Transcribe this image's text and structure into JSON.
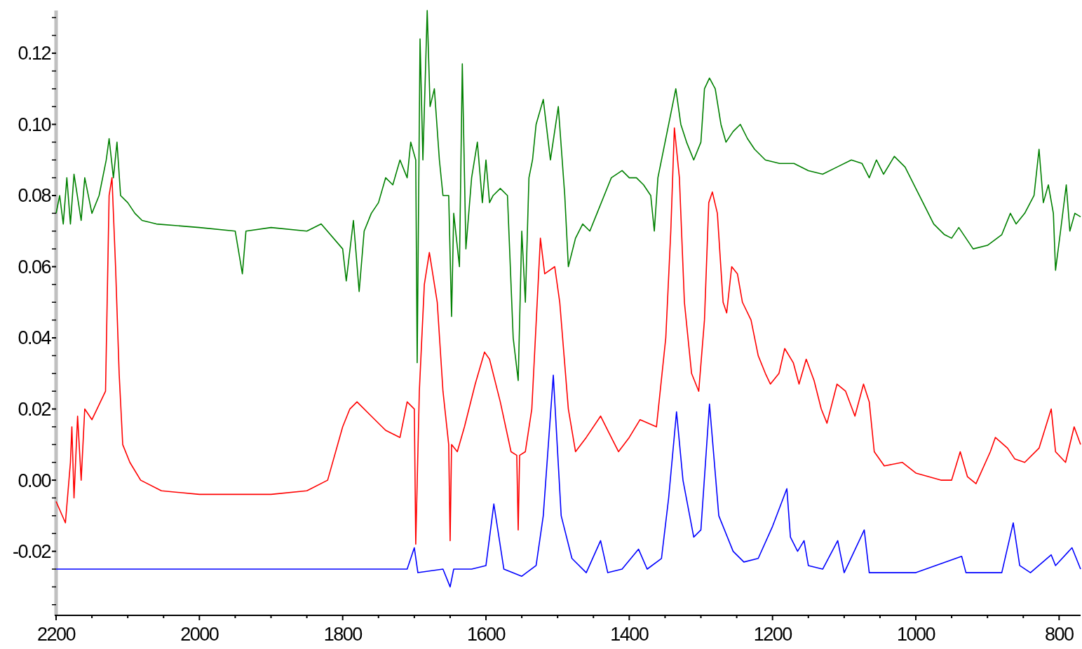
{
  "chart_data": {
    "type": "line",
    "xlim": [
      2200,
      770
    ],
    "ylim": [
      -0.038,
      0.132
    ],
    "xticks": [
      2200,
      {
        "value": 2150,
        "label": null
      },
      {
        "value": 2100,
        "label": null
      },
      {
        "value": 2050,
        "label": null
      },
      2000,
      {
        "value": 1950,
        "label": null
      },
      {
        "value": 1900,
        "label": null
      },
      {
        "value": 1850,
        "label": null
      },
      1800,
      {
        "value": 1750,
        "label": null
      },
      {
        "value": 1700,
        "label": null
      },
      {
        "value": 1650,
        "label": null
      },
      1600,
      {
        "value": 1550,
        "label": null
      },
      {
        "value": 1500,
        "label": null
      },
      {
        "value": 1450,
        "label": null
      },
      1400,
      {
        "value": 1350,
        "label": null
      },
      {
        "value": 1300,
        "label": null
      },
      {
        "value": 1250,
        "label": null
      },
      1200,
      {
        "value": 1150,
        "label": null
      },
      {
        "value": 1100,
        "label": null
      },
      {
        "value": 1050,
        "label": null
      },
      1000,
      {
        "value": 950,
        "label": null
      },
      {
        "value": 900,
        "label": null
      },
      {
        "value": 850,
        "label": null
      },
      800
    ],
    "yticks": [
      {
        "value": -0.035,
        "label": null
      },
      {
        "value": -0.03,
        "label": null
      },
      {
        "value": -0.025,
        "label": null
      },
      {
        "value": -0.02,
        "label": "-0.02"
      },
      {
        "value": -0.015,
        "label": null
      },
      {
        "value": -0.01,
        "label": null
      },
      {
        "value": -0.005,
        "label": null
      },
      {
        "value": 0,
        "label": "0.00"
      },
      {
        "value": 0.005,
        "label": null
      },
      {
        "value": 0.01,
        "label": null
      },
      {
        "value": 0.015,
        "label": null
      },
      {
        "value": 0.02,
        "label": "0.02"
      },
      {
        "value": 0.025,
        "label": null
      },
      {
        "value": 0.03,
        "label": null
      },
      {
        "value": 0.035,
        "label": null
      },
      {
        "value": 0.04,
        "label": "0.04"
      },
      {
        "value": 0.045,
        "label": null
      },
      {
        "value": 0.05,
        "label": null
      },
      {
        "value": 0.055,
        "label": null
      },
      {
        "value": 0.06,
        "label": "0.06"
      },
      {
        "value": 0.065,
        "label": null
      },
      {
        "value": 0.07,
        "label": null
      },
      {
        "value": 0.075,
        "label": null
      },
      {
        "value": 0.08,
        "label": "0.08"
      },
      {
        "value": 0.085,
        "label": null
      },
      {
        "value": 0.09,
        "label": null
      },
      {
        "value": 0.095,
        "label": null
      },
      {
        "value": 0.1,
        "label": "0.10"
      },
      {
        "value": 0.105,
        "label": null
      },
      {
        "value": 0.11,
        "label": null
      },
      {
        "value": 0.115,
        "label": null
      },
      {
        "value": 0.12,
        "label": "0.12"
      },
      {
        "value": 0.125,
        "label": null
      },
      {
        "value": 0.13,
        "label": null
      }
    ],
    "grid": false,
    "marker": "none",
    "line_style": "solid",
    "series": [
      {
        "color": "#008000",
        "x": [
          2200,
          2195,
          2190,
          2185,
          2180,
          2175,
          2165,
          2160,
          2150,
          2140,
          2130,
          2126,
          2120,
          2115,
          2110,
          2100,
          2090,
          2080,
          2060,
          2000,
          1950,
          1940,
          1935,
          1900,
          1850,
          1830,
          1800,
          1795,
          1785,
          1777,
          1770,
          1760,
          1750,
          1740,
          1730,
          1720,
          1710,
          1705,
          1698,
          1696,
          1692,
          1688,
          1682,
          1678,
          1672,
          1665,
          1660,
          1652,
          1648,
          1645,
          1637,
          1633,
          1628,
          1620,
          1612,
          1605,
          1600,
          1595,
          1590,
          1580,
          1570,
          1562,
          1555,
          1550,
          1545,
          1540,
          1535,
          1530,
          1520,
          1510,
          1499,
          1490,
          1485,
          1475,
          1465,
          1455,
          1445,
          1435,
          1425,
          1410,
          1400,
          1390,
          1380,
          1370,
          1365,
          1360,
          1350,
          1340,
          1335,
          1328,
          1320,
          1310,
          1300,
          1295,
          1288,
          1280,
          1272,
          1265,
          1255,
          1245,
          1235,
          1225,
          1210,
          1190,
          1170,
          1150,
          1130,
          1110,
          1090,
          1075,
          1065,
          1055,
          1045,
          1030,
          1015,
          1000,
          990,
          975,
          960,
          950,
          940,
          930,
          920,
          900,
          880,
          868,
          860,
          848,
          835,
          828,
          822,
          815,
          808,
          805,
          798,
          790,
          785,
          778,
          770
        ],
        "values": [
          0.075,
          0.08,
          0.072,
          0.085,
          0.072,
          0.086,
          0.073,
          0.085,
          0.075,
          0.08,
          0.09,
          0.096,
          0.085,
          0.095,
          0.08,
          0.078,
          0.075,
          0.073,
          0.072,
          0.071,
          0.07,
          0.058,
          0.07,
          0.071,
          0.07,
          0.072,
          0.065,
          0.056,
          0.073,
          0.053,
          0.07,
          0.075,
          0.078,
          0.085,
          0.083,
          0.09,
          0.085,
          0.095,
          0.09,
          0.033,
          0.124,
          0.09,
          0.132,
          0.105,
          0.11,
          0.09,
          0.08,
          0.08,
          0.046,
          0.075,
          0.06,
          0.117,
          0.065,
          0.085,
          0.095,
          0.078,
          0.09,
          0.078,
          0.08,
          0.082,
          0.08,
          0.04,
          0.028,
          0.07,
          0.05,
          0.085,
          0.09,
          0.1,
          0.107,
          0.09,
          0.105,
          0.08,
          0.06,
          0.068,
          0.072,
          0.07,
          0.075,
          0.08,
          0.085,
          0.087,
          0.085,
          0.085,
          0.083,
          0.08,
          0.07,
          0.085,
          0.095,
          0.105,
          0.11,
          0.1,
          0.095,
          0.09,
          0.095,
          0.11,
          0.113,
          0.11,
          0.1,
          0.095,
          0.098,
          0.1,
          0.096,
          0.093,
          0.09,
          0.089,
          0.089,
          0.087,
          0.086,
          0.088,
          0.09,
          0.089,
          0.085,
          0.09,
          0.086,
          0.091,
          0.088,
          0.082,
          0.078,
          0.072,
          0.069,
          0.068,
          0.071,
          0.068,
          0.065,
          0.066,
          0.069,
          0.075,
          0.072,
          0.075,
          0.08,
          0.093,
          0.078,
          0.083,
          0.075,
          0.059,
          0.07,
          0.083,
          0.07,
          0.075,
          0.074
        ]
      },
      {
        "color": "#ff0000",
        "x": [
          2200,
          2187,
          2180,
          2178,
          2175,
          2170,
          2165,
          2160,
          2150,
          2131,
          2126,
          2122,
          2117,
          2112,
          2107,
          2097,
          2082,
          2053,
          2000,
          1900,
          1850,
          1821,
          1800,
          1790,
          1780,
          1760,
          1740,
          1720,
          1710,
          1700,
          1698,
          1693,
          1686,
          1679,
          1668,
          1660,
          1652,
          1650,
          1648,
          1640,
          1630,
          1615,
          1602,
          1595,
          1580,
          1565,
          1557,
          1555,
          1553,
          1545,
          1536,
          1524,
          1518,
          1504,
          1497,
          1485,
          1475,
          1460,
          1440,
          1430,
          1415,
          1400,
          1385,
          1362,
          1349,
          1342,
          1337,
          1330,
          1323,
          1313,
          1303,
          1295,
          1289,
          1284,
          1277,
          1269,
          1264,
          1257,
          1249,
          1242,
          1230,
          1220,
          1210,
          1203,
          1191,
          1183,
          1171,
          1163,
          1153,
          1142,
          1132,
          1124,
          1110,
          1098,
          1085,
          1073,
          1065,
          1058,
          1044,
          1019,
          1000,
          965,
          950,
          938,
          928,
          916,
          896,
          889,
          872,
          862,
          848,
          828,
          811,
          805,
          791,
          779,
          770
        ],
        "values": [
          -0.006,
          -0.012,
          0.005,
          0.015,
          -0.005,
          0.018,
          0,
          0.02,
          0.017,
          0.025,
          0.08,
          0.085,
          0.06,
          0.03,
          0.01,
          0.005,
          0,
          -0.003,
          -0.004,
          -0.004,
          -0.003,
          0,
          0.015,
          0.02,
          0.022,
          0.018,
          0.014,
          0.012,
          0.022,
          0.02,
          -0.018,
          0.025,
          0.055,
          0.064,
          0.05,
          0.025,
          0.01,
          -0.017,
          0.01,
          0.008,
          0.015,
          0.027,
          0.036,
          0.034,
          0.022,
          0.008,
          0.007,
          -0.014,
          0.007,
          0.008,
          0.02,
          0.068,
          0.058,
          0.06,
          0.05,
          0.02,
          0.008,
          0.012,
          0.018,
          0.014,
          0.008,
          0.012,
          0.017,
          0.015,
          0.04,
          0.07,
          0.099,
          0.085,
          0.05,
          0.03,
          0.025,
          0.045,
          0.078,
          0.081,
          0.075,
          0.05,
          0.047,
          0.06,
          0.058,
          0.05,
          0.045,
          0.035,
          0.03,
          0.027,
          0.03,
          0.037,
          0.033,
          0.027,
          0.034,
          0.028,
          0.02,
          0.016,
          0.027,
          0.025,
          0.018,
          0.027,
          0.022,
          0.008,
          0.004,
          0.005,
          0.002,
          0,
          0,
          0.008,
          0.001,
          -0.001,
          0.008,
          0.012,
          0.009,
          0.006,
          0.005,
          0.009,
          0.02,
          0.008,
          0.005,
          0.015,
          0.01
        ]
      },
      {
        "color": "#0000ff",
        "x": [
          2200,
          2100,
          2000,
          1900,
          1800,
          1710,
          1700,
          1695,
          1660,
          1650,
          1645,
          1620,
          1600,
          1589,
          1575,
          1550,
          1530,
          1520,
          1506,
          1495,
          1480,
          1460,
          1440,
          1430,
          1410,
          1387,
          1375,
          1355,
          1345,
          1334,
          1325,
          1310,
          1300,
          1288,
          1275,
          1255,
          1240,
          1220,
          1200,
          1180,
          1175,
          1165,
          1156,
          1150,
          1130,
          1109,
          1100,
          1072,
          1065,
          1000,
          936,
          930,
          880,
          864,
          855,
          840,
          811,
          805,
          782,
          770
        ],
        "values": [
          -0.025,
          -0.025,
          -0.025,
          -0.025,
          -0.025,
          -0.025,
          -0.019,
          -0.026,
          -0.025,
          -0.03,
          -0.025,
          -0.025,
          -0.024,
          -0.0067,
          -0.025,
          -0.027,
          -0.024,
          -0.01,
          0.0295,
          -0.01,
          -0.022,
          -0.026,
          -0.017,
          -0.026,
          -0.025,
          -0.0194,
          -0.025,
          -0.022,
          -0.005,
          0.0192,
          0,
          -0.016,
          -0.014,
          0.0214,
          -0.01,
          -0.02,
          -0.023,
          -0.022,
          -0.013,
          -0.0024,
          -0.016,
          -0.02,
          -0.017,
          -0.024,
          -0.025,
          -0.017,
          -0.026,
          -0.014,
          -0.026,
          -0.026,
          -0.0214,
          -0.026,
          -0.026,
          -0.012,
          -0.024,
          -0.026,
          -0.021,
          -0.024,
          -0.019,
          -0.025
        ]
      }
    ]
  }
}
